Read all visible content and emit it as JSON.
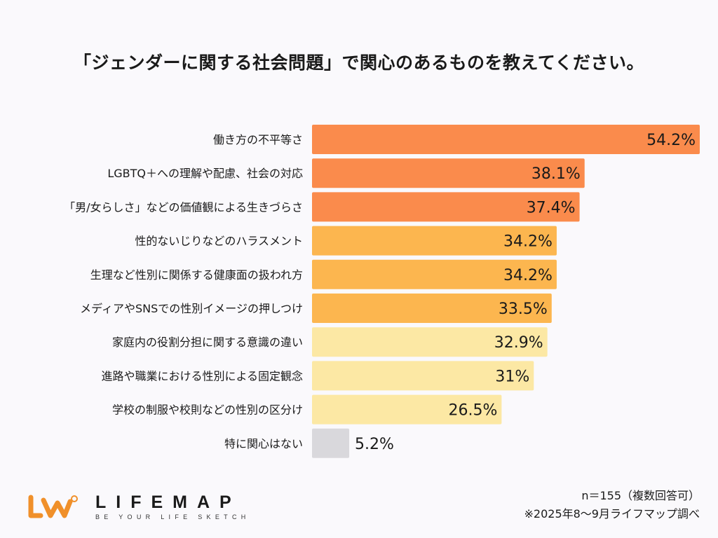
{
  "chart_data": {
    "type": "bar",
    "orientation": "horizontal",
    "title": "「ジェンダーに関する社会問題」で関心のあるものを教えてください。",
    "categories": [
      "働き方の不平等さ",
      "LGBTQ＋への理解や配慮、社会の対応",
      "「男/女らしさ」などの価値観による生きづらさ",
      "性的ないじりなどのハラスメント",
      "生理など性別に関係する健康面の扱われ方",
      "メディアやSNSでの性別イメージの押しつけ",
      "家庭内の役割分担に関する意識の違い",
      "進路や職業における性別による固定観念",
      "学校の制服や校則などの性別の区分け",
      "特に関心はない"
    ],
    "values": [
      54.2,
      38.1,
      37.4,
      34.2,
      34.2,
      33.5,
      32.9,
      31,
      26.5,
      5.2
    ],
    "labels": [
      "54.2%",
      "38.1%",
      "37.4%",
      "34.2%",
      "34.2%",
      "33.5%",
      "32.9%",
      "31%",
      "26.5%",
      "5.2%"
    ],
    "colors": [
      "#fa8b4c",
      "#fa8b4c",
      "#fa8b4c",
      "#fcb64f",
      "#fcb64f",
      "#fcb64f",
      "#fce8a4",
      "#fce8a4",
      "#fce8a4",
      "#d9d8dc"
    ],
    "unit": "%",
    "grid": false,
    "legend": "none"
  },
  "footer": {
    "sample_note": "n＝155（複数回答可）",
    "source_note": "※2025年8〜9月ライフマップ調べ"
  },
  "logo": {
    "name": "LIFEMAP",
    "tagline": "BE YOUR LIFE SKETCH",
    "color": "#f0902a"
  }
}
